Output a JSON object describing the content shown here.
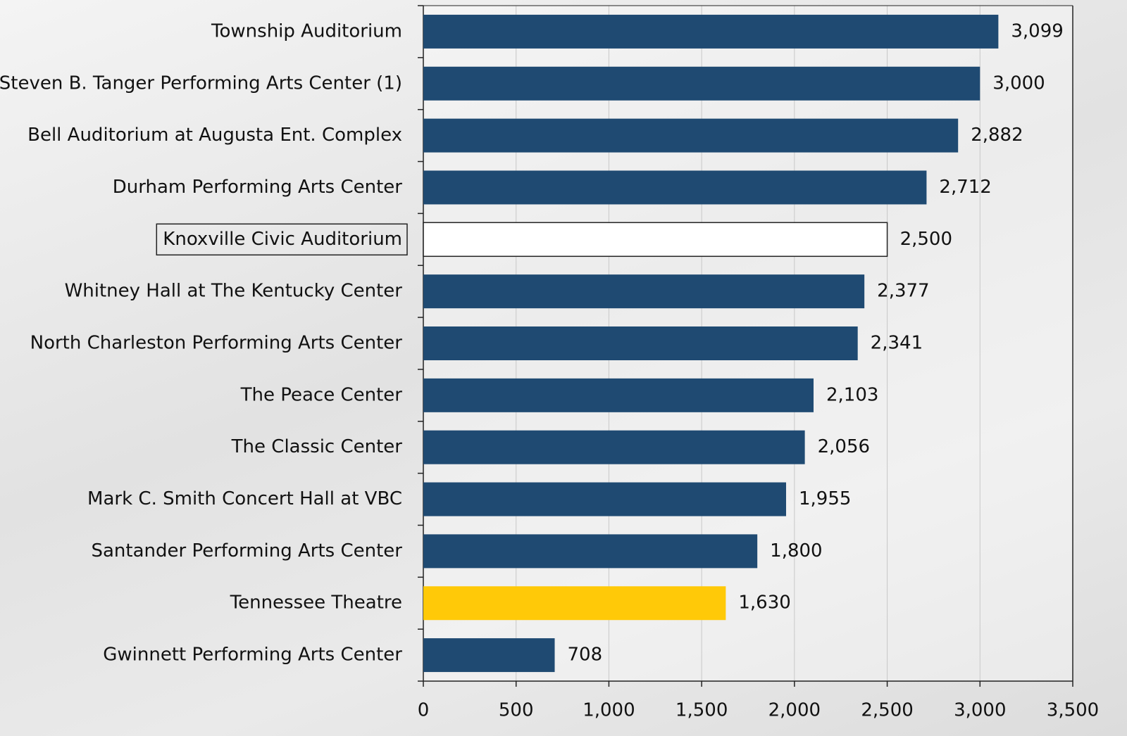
{
  "chart_data": {
    "type": "bar",
    "orientation": "horizontal",
    "categories": [
      "Township Auditorium",
      "Steven B. Tanger Performing Arts Center (1)",
      "Bell Auditorium at Augusta Ent. Complex",
      "Durham Performing Arts Center",
      "Knoxville Civic Auditorium",
      "Whitney Hall at The Kentucky Center",
      "North Charleston Performing Arts Center",
      "The Peace Center",
      "The Classic Center",
      "Mark C. Smith Concert Hall at VBC",
      "Santander Performing Arts Center",
      "Tennessee Theatre",
      "Gwinnett Performing Arts Center"
    ],
    "values": [
      3099,
      3000,
      2882,
      2712,
      2500,
      2377,
      2341,
      2103,
      2056,
      1955,
      1800,
      1630,
      708
    ],
    "value_labels": [
      "3,099",
      "3,000",
      "2,882",
      "2,712",
      "2,500",
      "2,377",
      "2,341",
      "2,103",
      "2,056",
      "1,955",
      "1,800",
      "1,630",
      "708"
    ],
    "colors": [
      "#1f4a72",
      "#1f4a72",
      "#1f4a72",
      "#1f4a72",
      "#ffffff",
      "#1f4a72",
      "#1f4a72",
      "#1f4a72",
      "#1f4a72",
      "#1f4a72",
      "#1f4a72",
      "#ffc908",
      "#1f4a72"
    ],
    "xlim": [
      0,
      3500
    ],
    "xticks": [
      0,
      500,
      {
        "value": 1000,
        "label": "1,000"
      },
      {
        "value": 1500,
        "label": "1,500"
      },
      {
        "value": 2000,
        "label": "2,000"
      },
      {
        "value": 2500,
        "label": "2,500"
      },
      {
        "value": 3000,
        "label": "3,000"
      },
      {
        "value": 3500,
        "label": "3,500"
      }
    ],
    "grid": true
  }
}
